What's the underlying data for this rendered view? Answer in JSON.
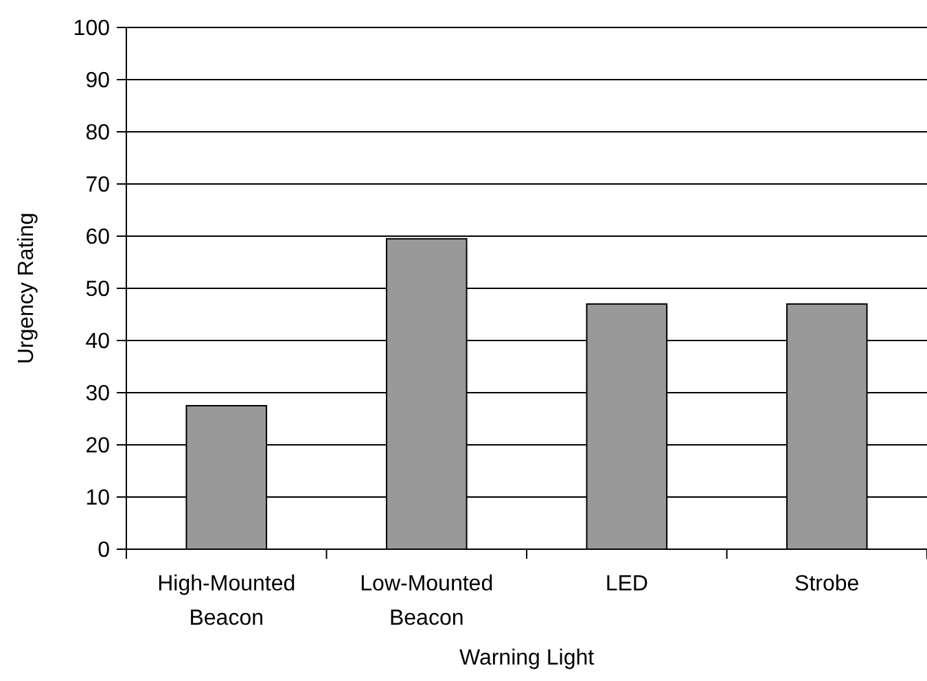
{
  "chart_data": {
    "type": "bar",
    "xlabel": "Warning Light",
    "ylabel": "Urgency Rating",
    "categories": [
      "High-Mounted Beacon",
      "Low-Mounted Beacon",
      "LED",
      "Strobe"
    ],
    "values": [
      27.5,
      59.5,
      47,
      47
    ],
    "color": "#999999",
    "ylim": [
      0,
      100
    ],
    "yticks": [
      0,
      10,
      20,
      30,
      40,
      50,
      60,
      70,
      80,
      90,
      100
    ],
    "grid": "y"
  }
}
